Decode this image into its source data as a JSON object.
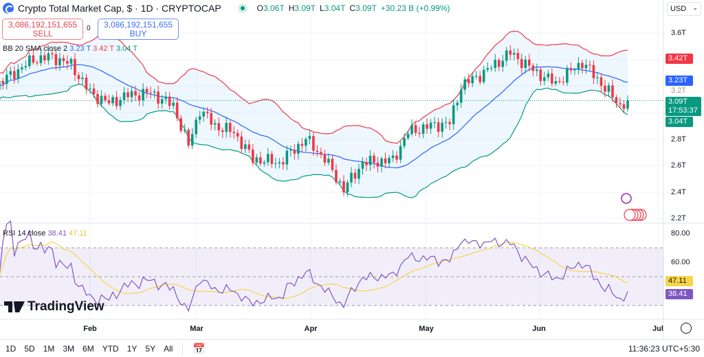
{
  "header": {
    "title": "Crypto Total Market Cap, $ · 1D · CRYPTOCAP",
    "ohlc": [
      {
        "k": "O",
        "v": "3.06T"
      },
      {
        "k": "H",
        "v": "3.09T"
      },
      {
        "k": "L",
        "v": "3.04T"
      },
      {
        "k": "C",
        "v": "3.09T"
      },
      {
        "k": "",
        "v": "+30.23 B (+0.99%)"
      }
    ]
  },
  "trade": {
    "sell_price": "3,086,192,151,655",
    "sell_label": "SELL",
    "buy_price": "3,086,192,151,655",
    "buy_label": "BUY",
    "spread": "0"
  },
  "bb": {
    "label": "BB 20 SMA close 2",
    "basis": "3.23 T",
    "upper": "3.42 T",
    "lower": "3.04 T"
  },
  "rsi": {
    "label": "RSI 14 close",
    "value": "38.41",
    "ma": "47.11"
  },
  "currency": "USD",
  "price_axis": [
    "3.6T",
    "3.4T",
    "3.2T",
    "3.0T",
    "2.8T",
    "2.6T",
    "2.4T",
    "2.2T"
  ],
  "price_tags": {
    "upper": "3.42T",
    "basis": "3.23T",
    "last": "3.09T",
    "countdown": "17:53:37",
    "lower": "3.04T"
  },
  "rsi_axis": [
    "80.00",
    "60.00"
  ],
  "rsi_tags": {
    "ma": "47.11",
    "rsi": "38.41"
  },
  "time_axis": [
    "Feb",
    "Mar",
    "Apr",
    "May",
    "Jun",
    "Jul"
  ],
  "ranges": [
    "1D",
    "5D",
    "1M",
    "3M",
    "6M",
    "YTD",
    "1Y",
    "5Y",
    "All"
  ],
  "clock": "11:36:23 UTC+5:30",
  "watermark": "TradingView",
  "colors": {
    "up": "#089981",
    "down": "#f23645",
    "bb_basis": "#2962ff",
    "bb_upper": "#f23645",
    "bb_lower": "#089981",
    "rsi": "#7e57c2",
    "rsi_ma": "#f7d44a"
  },
  "chart_data": {
    "type": "candlestick",
    "symbol": "CRYPTOCAP:TOTAL",
    "interval": "1D",
    "ylim": [
      2.2,
      3.6
    ],
    "unit": "T USD",
    "closes": [
      [
        "2024-01-07",
        3.2
      ],
      [
        "2024-01-12",
        3.3
      ],
      [
        "2024-01-17",
        3.4
      ],
      [
        "2024-01-22",
        3.42
      ],
      [
        "2024-01-27",
        3.36
      ],
      [
        "2024-02-01",
        3.15
      ],
      [
        "2024-02-06",
        3.07
      ],
      [
        "2024-02-11",
        3.13
      ],
      [
        "2024-02-17",
        3.15
      ],
      [
        "2024-02-23",
        3.05
      ],
      [
        "2024-02-27",
        2.75
      ],
      [
        "2024-03-01",
        3.02
      ],
      [
        "2024-03-05",
        2.9
      ],
      [
        "2024-03-10",
        2.85
      ],
      [
        "2024-03-15",
        2.65
      ],
      [
        "2024-03-22",
        2.62
      ],
      [
        "2024-03-29",
        2.8
      ],
      [
        "2024-04-03",
        2.65
      ],
      [
        "2024-04-08",
        2.42
      ],
      [
        "2024-04-13",
        2.62
      ],
      [
        "2024-04-21",
        2.64
      ],
      [
        "2024-04-25",
        2.85
      ],
      [
        "2024-05-01",
        2.9
      ],
      [
        "2024-05-06",
        2.92
      ],
      [
        "2024-05-09",
        3.2
      ],
      [
        "2024-05-15",
        3.3
      ],
      [
        "2024-05-22",
        3.45
      ],
      [
        "2024-05-29",
        3.3
      ],
      [
        "2024-06-03",
        3.22
      ],
      [
        "2024-06-10",
        3.38
      ],
      [
        "2024-06-15",
        3.22
      ],
      [
        "2024-06-20",
        3.05
      ],
      [
        "2024-06-22",
        3.09
      ]
    ]
  }
}
